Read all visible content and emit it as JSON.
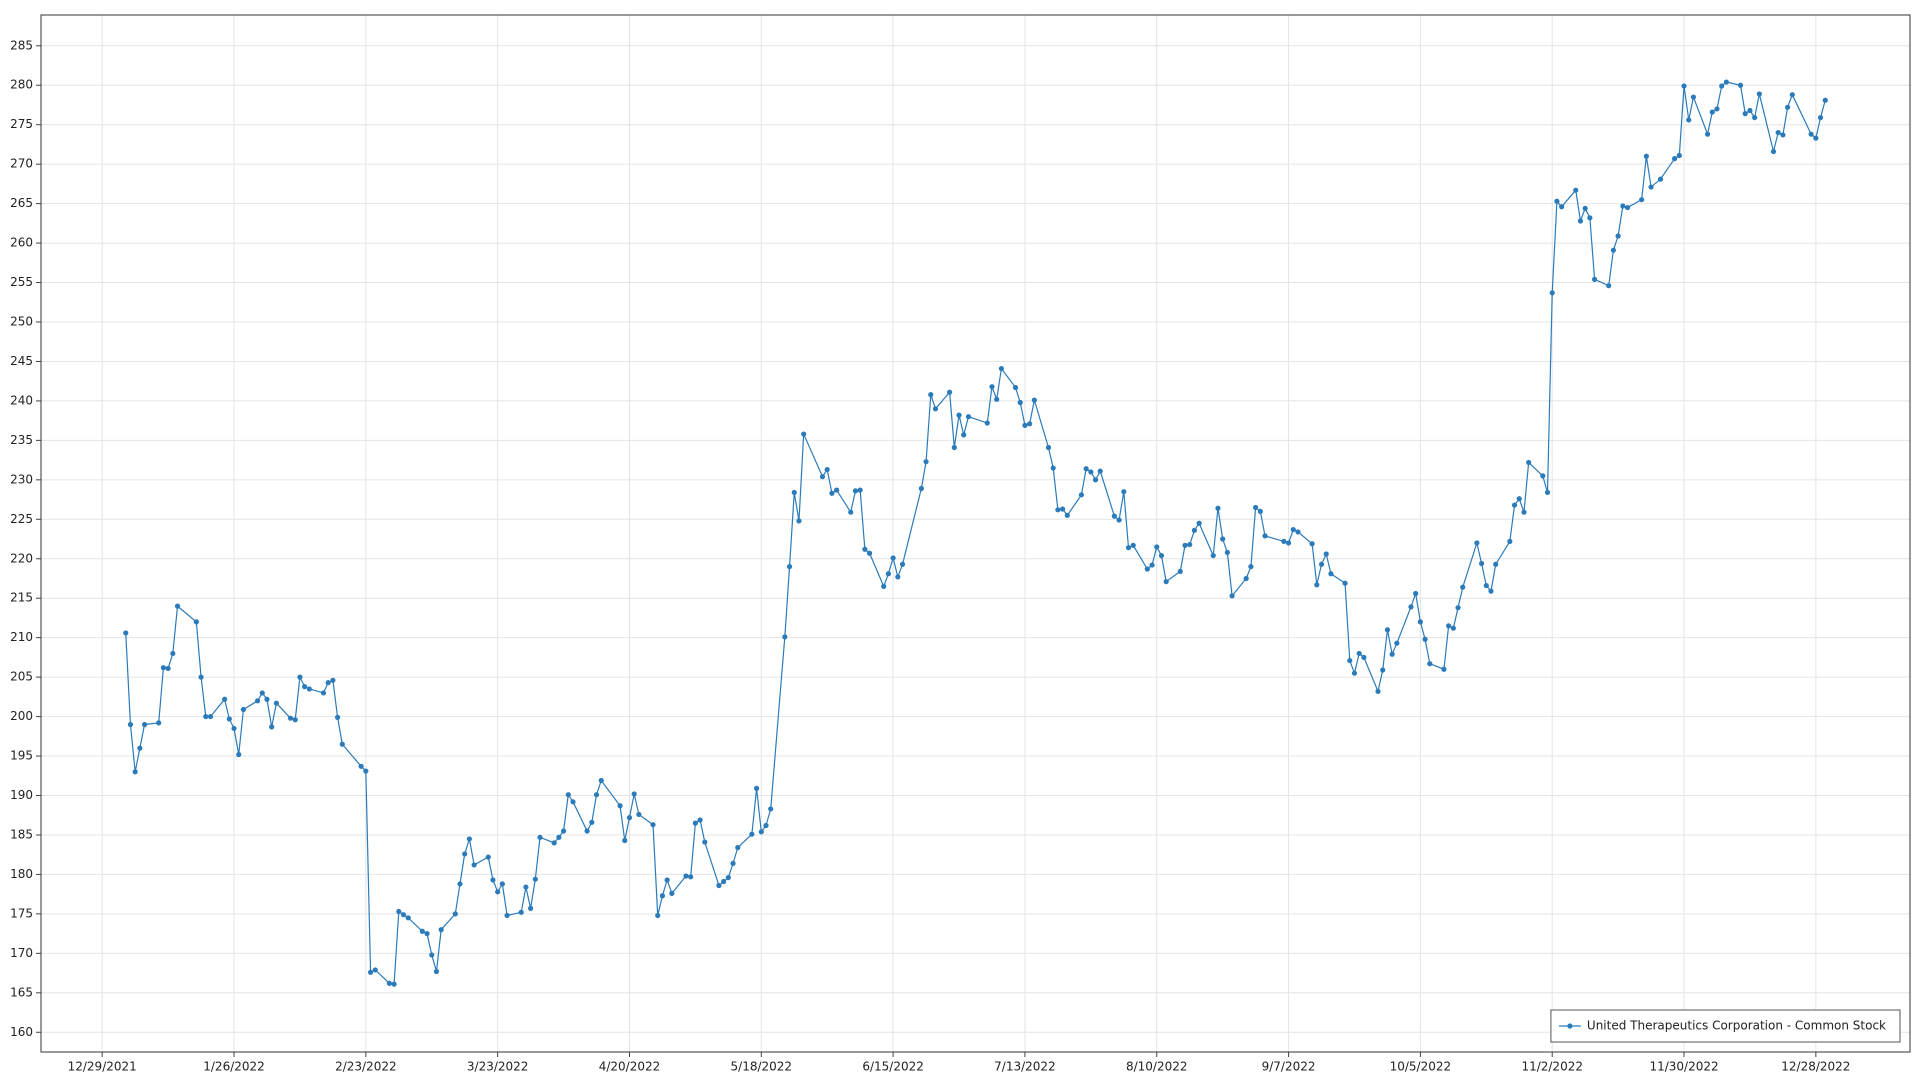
{
  "chart_data": {
    "type": "line",
    "x": [
      "1/3/2022",
      "1/4/2022",
      "1/5/2022",
      "1/6/2022",
      "1/7/2022",
      "1/10/2022",
      "1/11/2022",
      "1/12/2022",
      "1/13/2022",
      "1/14/2022",
      "1/18/2022",
      "1/19/2022",
      "1/20/2022",
      "1/21/2022",
      "1/24/2022",
      "1/25/2022",
      "1/26/2022",
      "1/27/2022",
      "1/28/2022",
      "1/31/2022",
      "2/1/2022",
      "2/2/2022",
      "2/3/2022",
      "2/4/2022",
      "2/7/2022",
      "2/8/2022",
      "2/9/2022",
      "2/10/2022",
      "2/11/2022",
      "2/14/2022",
      "2/15/2022",
      "2/16/2022",
      "2/17/2022",
      "2/18/2022",
      "2/22/2022",
      "2/23/2022",
      "2/24/2022",
      "2/25/2022",
      "2/28/2022",
      "3/1/2022",
      "3/2/2022",
      "3/3/2022",
      "3/4/2022",
      "3/7/2022",
      "3/8/2022",
      "3/9/2022",
      "3/10/2022",
      "3/11/2022",
      "3/14/2022",
      "3/15/2022",
      "3/16/2022",
      "3/17/2022",
      "3/18/2022",
      "3/21/2022",
      "3/22/2022",
      "3/23/2022",
      "3/24/2022",
      "3/25/2022",
      "3/28/2022",
      "3/29/2022",
      "3/30/2022",
      "3/31/2022",
      "4/1/2022",
      "4/4/2022",
      "4/5/2022",
      "4/6/2022",
      "4/7/2022",
      "4/8/2022",
      "4/11/2022",
      "4/12/2022",
      "4/13/2022",
      "4/14/2022",
      "4/18/2022",
      "4/19/2022",
      "4/20/2022",
      "4/21/2022",
      "4/22/2022",
      "4/25/2022",
      "4/26/2022",
      "4/27/2022",
      "4/28/2022",
      "4/29/2022",
      "5/2/2022",
      "5/3/2022",
      "5/4/2022",
      "5/5/2022",
      "5/6/2022",
      "5/9/2022",
      "5/10/2022",
      "5/11/2022",
      "5/12/2022",
      "5/13/2022",
      "5/16/2022",
      "5/17/2022",
      "5/18/2022",
      "5/19/2022",
      "5/20/2022",
      "5/23/2022",
      "5/24/2022",
      "5/25/2022",
      "5/26/2022",
      "5/27/2022",
      "5/31/2022",
      "6/1/2022",
      "6/2/2022",
      "6/3/2022",
      "6/6/2022",
      "6/7/2022",
      "6/8/2022",
      "6/9/2022",
      "6/10/2022",
      "6/13/2022",
      "6/14/2022",
      "6/15/2022",
      "6/16/2022",
      "6/17/2022",
      "6/21/2022",
      "6/22/2022",
      "6/23/2022",
      "6/24/2022",
      "6/27/2022",
      "6/28/2022",
      "6/29/2022",
      "6/30/2022",
      "7/1/2022",
      "7/5/2022",
      "7/6/2022",
      "7/7/2022",
      "7/8/2022",
      "7/11/2022",
      "7/12/2022",
      "7/13/2022",
      "7/14/2022",
      "7/15/2022",
      "7/18/2022",
      "7/19/2022",
      "7/20/2022",
      "7/21/2022",
      "7/22/2022",
      "7/25/2022",
      "7/26/2022",
      "7/27/2022",
      "7/28/2022",
      "7/29/2022",
      "8/1/2022",
      "8/2/2022",
      "8/3/2022",
      "8/4/2022",
      "8/5/2022",
      "8/8/2022",
      "8/9/2022",
      "8/10/2022",
      "8/11/2022",
      "8/12/2022",
      "8/15/2022",
      "8/16/2022",
      "8/17/2022",
      "8/18/2022",
      "8/19/2022",
      "8/22/2022",
      "8/23/2022",
      "8/24/2022",
      "8/25/2022",
      "8/26/2022",
      "8/29/2022",
      "8/30/2022",
      "8/31/2022",
      "9/1/2022",
      "9/2/2022",
      "9/6/2022",
      "9/7/2022",
      "9/8/2022",
      "9/9/2022",
      "9/12/2022",
      "9/13/2022",
      "9/14/2022",
      "9/15/2022",
      "9/16/2022",
      "9/19/2022",
      "9/20/2022",
      "9/21/2022",
      "9/22/2022",
      "9/23/2022",
      "9/26/2022",
      "9/27/2022",
      "9/28/2022",
      "9/29/2022",
      "9/30/2022",
      "10/3/2022",
      "10/4/2022",
      "10/5/2022",
      "10/6/2022",
      "10/7/2022",
      "10/10/2022",
      "10/11/2022",
      "10/12/2022",
      "10/13/2022",
      "10/14/2022",
      "10/17/2022",
      "10/18/2022",
      "10/19/2022",
      "10/20/2022",
      "10/21/2022",
      "10/24/2022",
      "10/25/2022",
      "10/26/2022",
      "10/27/2022",
      "10/28/2022",
      "10/31/2022",
      "11/1/2022",
      "11/2/2022",
      "11/3/2022",
      "11/4/2022",
      "11/7/2022",
      "11/8/2022",
      "11/9/2022",
      "11/10/2022",
      "11/11/2022",
      "11/14/2022",
      "11/15/2022",
      "11/16/2022",
      "11/17/2022",
      "11/18/2022",
      "11/21/2022",
      "11/22/2022",
      "11/23/2022",
      "11/25/2022",
      "11/28/2022",
      "11/29/2022",
      "11/30/2022",
      "12/1/2022",
      "12/2/2022",
      "12/5/2022",
      "12/6/2022",
      "12/7/2022",
      "12/8/2022",
      "12/9/2022",
      "12/12/2022",
      "12/13/2022",
      "12/14/2022",
      "12/15/2022",
      "12/16/2022",
      "12/19/2022",
      "12/20/2022",
      "12/21/2022",
      "12/22/2022",
      "12/23/2022",
      "12/27/2022",
      "12/28/2022",
      "12/29/2022",
      "12/30/2022"
    ],
    "series": [
      {
        "name": "United Therapeutics Corporation - Common Stock",
        "color": "#2b7bba",
        "values": [
          210.6,
          199,
          193,
          196,
          199,
          199.2,
          206.2,
          206.1,
          208,
          214,
          212,
          205,
          200,
          200,
          202.2,
          199.7,
          198.5,
          195.2,
          200.9,
          202,
          203,
          202.2,
          198.7,
          201.7,
          199.8,
          199.6,
          205,
          203.8,
          203.5,
          203,
          204.3,
          204.6,
          199.9,
          196.5,
          193.7,
          193.1,
          167.6,
          167.9,
          166.2,
          166.1,
          175.3,
          174.9,
          174.5,
          172.8,
          172.5,
          169.8,
          167.7,
          173,
          175,
          178.8,
          182.6,
          184.5,
          181.2,
          182.2,
          179.3,
          177.8,
          178.8,
          174.8,
          175.2,
          178.4,
          175.7,
          179.4,
          184.7,
          184,
          184.7,
          185.5,
          190.1,
          189.2,
          185.5,
          186.6,
          190.1,
          191.9,
          188.7,
          184.3,
          187.2,
          190.2,
          187.6,
          186.3,
          174.8,
          177.3,
          179.3,
          177.6,
          179.8,
          179.7,
          186.5,
          186.9,
          184.1,
          178.6,
          179.1,
          179.6,
          181.4,
          183.4,
          185.1,
          190.9,
          185.4,
          186.2,
          188.3,
          210.1,
          219,
          228.4,
          224.8,
          235.8,
          230.4,
          231.3,
          228.3,
          228.7,
          225.9,
          228.6,
          228.7,
          221.2,
          220.7,
          216.5,
          218.1,
          220.1,
          217.7,
          219.3,
          228.9,
          232.3,
          240.8,
          239,
          241.1,
          234.1,
          238.2,
          235.7,
          238,
          237.2,
          241.8,
          240.2,
          244.1,
          241.7,
          239.8,
          236.9,
          237.1,
          240.1,
          234.1,
          231.5,
          226.2,
          226.3,
          225.5,
          228.1,
          231.4,
          231,
          230,
          231.1,
          225.4,
          224.9,
          228.5,
          221.4,
          221.7,
          218.7,
          219.2,
          221.5,
          220.4,
          217.1,
          218.4,
          221.7,
          221.8,
          223.6,
          224.5,
          220.4,
          226.4,
          222.5,
          220.8,
          215.3,
          217.5,
          219,
          226.5,
          226,
          222.9,
          222.2,
          222,
          223.7,
          223.4,
          221.9,
          216.7,
          219.3,
          220.6,
          218.1,
          216.9,
          207.1,
          205.5,
          208,
          207.5,
          203.2,
          205.9,
          211,
          207.9,
          209.3,
          213.9,
          215.6,
          212,
          209.8,
          206.7,
          206,
          211.5,
          211.2,
          213.8,
          216.4,
          222,
          219.4,
          216.6,
          215.9,
          219.3,
          222.2,
          226.8,
          227.6,
          225.9,
          232.2,
          230.5,
          228.4,
          253.7,
          265.3,
          264.6,
          266.7,
          262.8,
          264.4,
          263.2,
          255.4,
          254.6,
          259.1,
          260.9,
          264.7,
          264.5,
          265.5,
          271,
          267.1,
          268.1,
          270.7,
          271.1,
          279.9,
          275.6,
          278.5,
          273.8,
          276.6,
          277,
          279.9,
          280.4,
          280,
          276.4,
          276.8,
          275.9,
          278.9,
          271.6,
          274,
          273.7,
          277.2,
          278.8,
          273.8,
          273.3,
          275.9,
          278.1
        ]
      }
    ],
    "xlim": [
      "12/16/2021",
      "1/17/2023"
    ],
    "xticks": [
      "12/29/2021",
      "1/26/2022",
      "2/23/2022",
      "3/23/2022",
      "4/20/2022",
      "5/18/2022",
      "6/15/2022",
      "7/13/2022",
      "8/10/2022",
      "9/7/2022",
      "10/5/2022",
      "11/2/2022",
      "11/30/2022",
      "12/28/2022"
    ],
    "ylim": [
      157.5,
      288.9
    ],
    "yticks": [
      160,
      165,
      170,
      175,
      180,
      185,
      190,
      195,
      200,
      205,
      210,
      215,
      220,
      225,
      230,
      235,
      240,
      245,
      250,
      255,
      260,
      265,
      270,
      275,
      280,
      285
    ],
    "grid": true,
    "legend": "lower right"
  }
}
